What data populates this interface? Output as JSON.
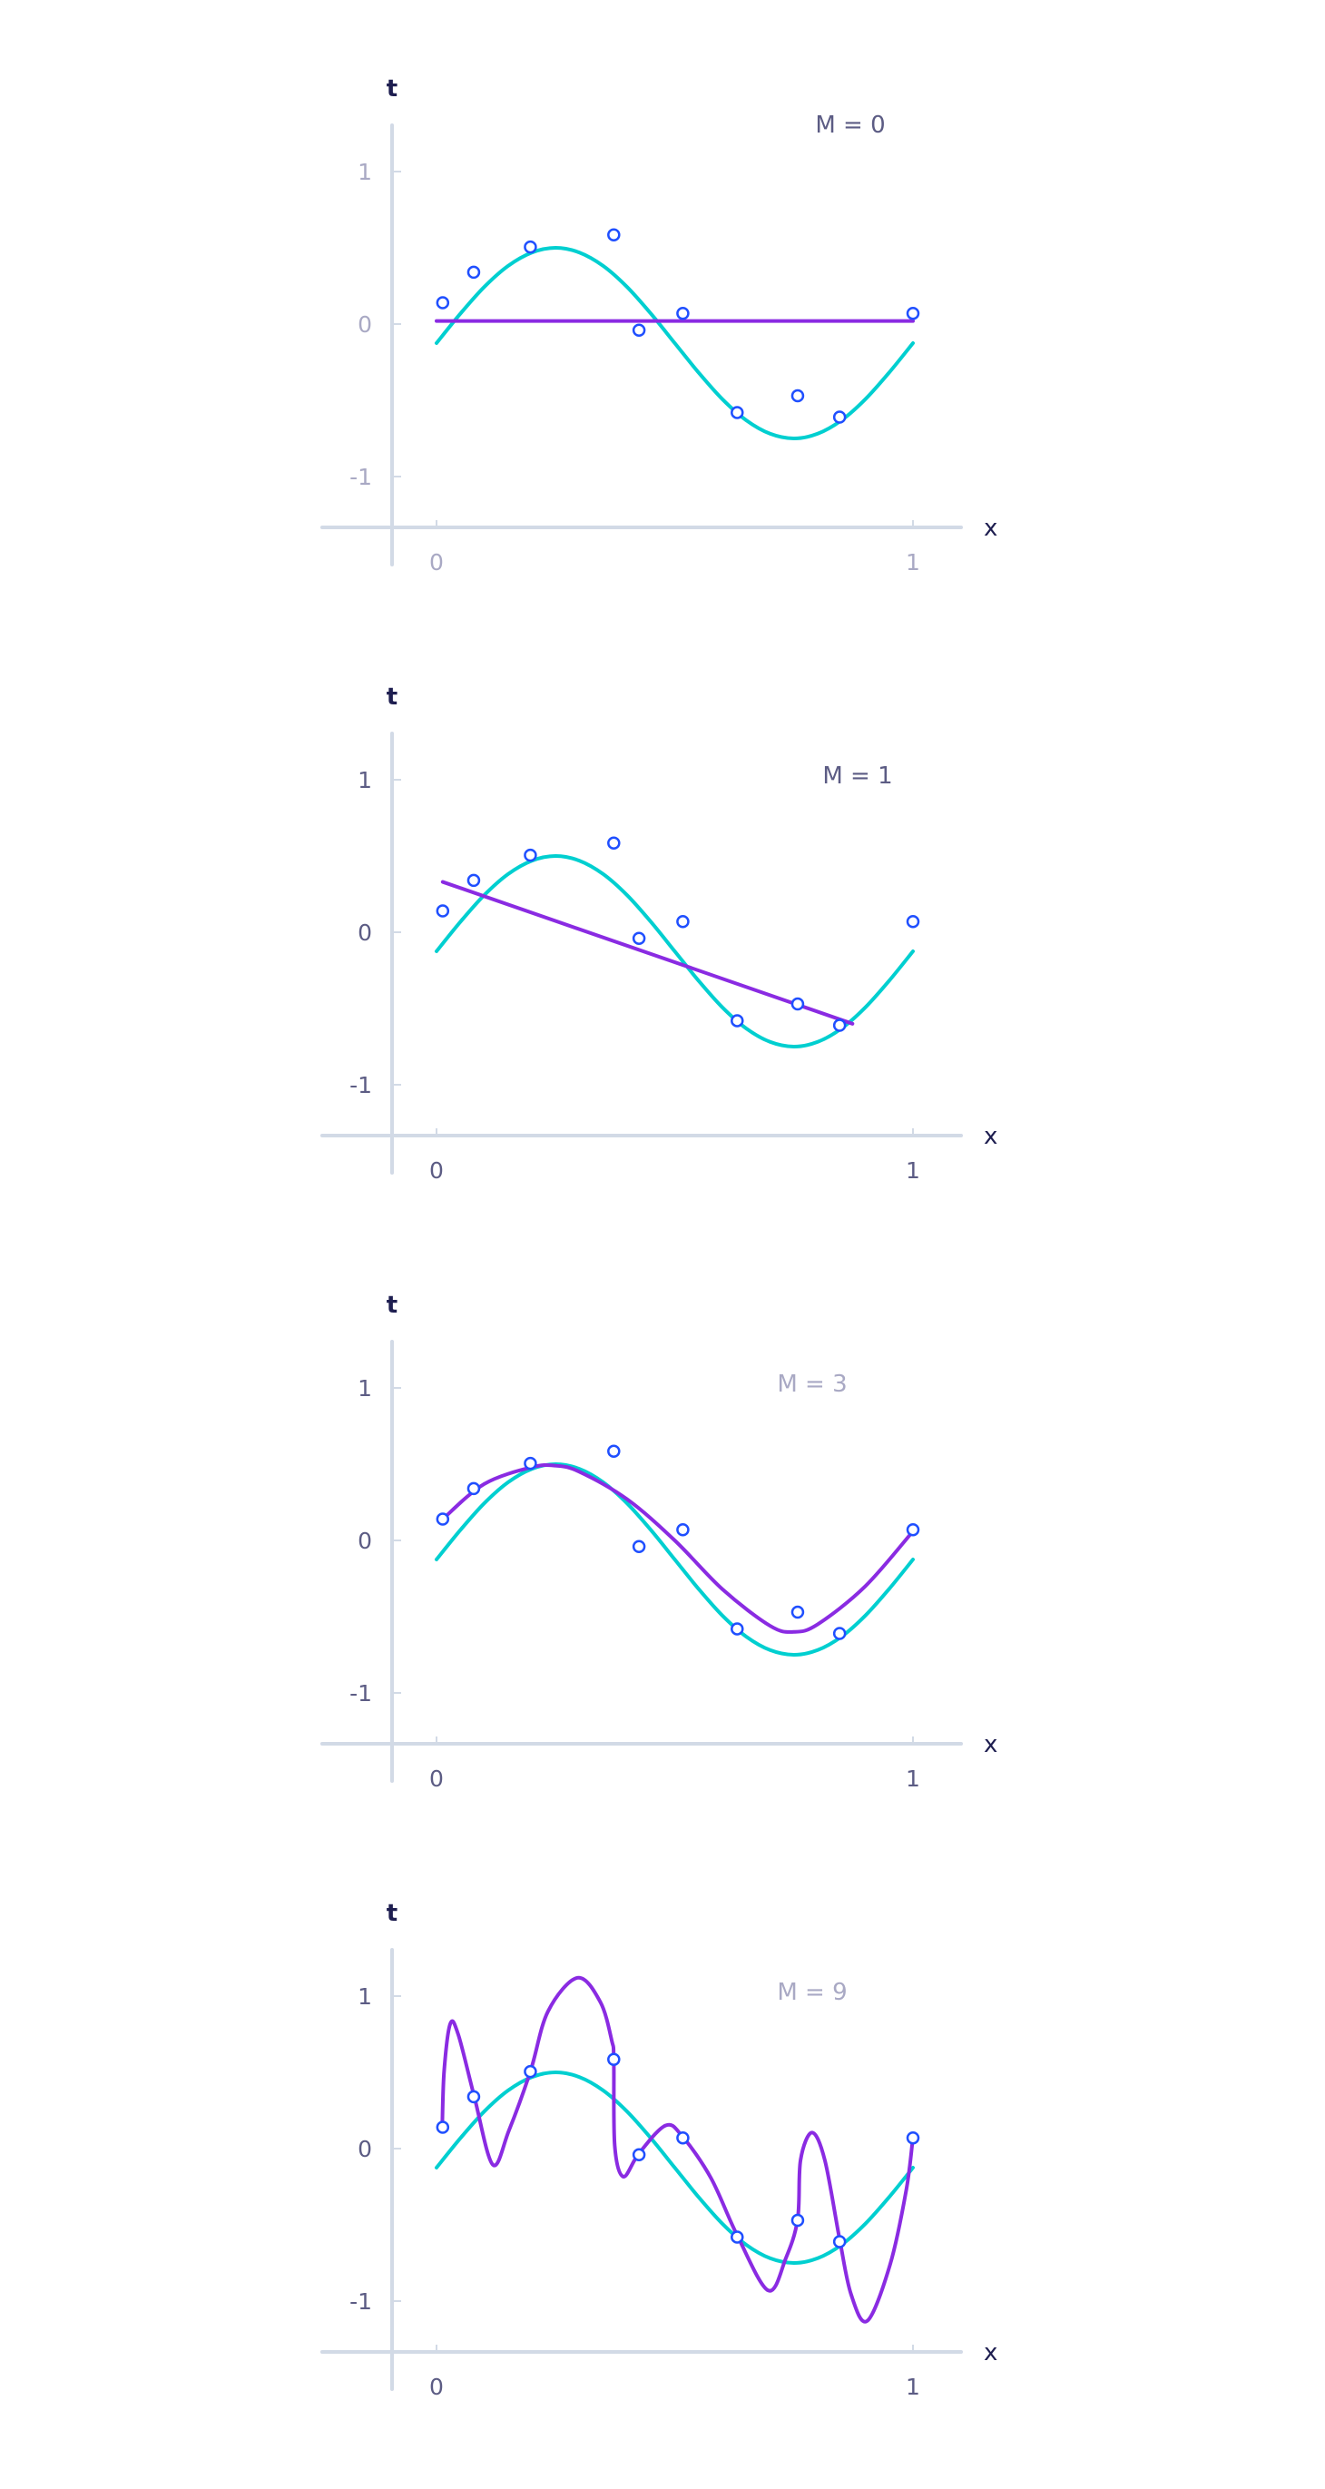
{
  "colors": {
    "target_curve": "#00cfd0",
    "fit_curve": "#8a2be2",
    "points": "#1f4fff",
    "axis": "#d2dae6",
    "axis_title": "#1e1e50",
    "tick_light": "#a9a9c4",
    "tick_dark": "#5c5c84"
  },
  "target_curve": {
    "x": [
      0,
      0.05,
      0.1,
      0.15,
      0.2,
      0.25,
      0.3,
      0.35,
      0.4,
      0.45,
      0.5,
      0.55,
      0.6,
      0.65,
      0.7,
      0.75,
      0.8,
      0.85,
      0.9,
      0.95,
      1
    ],
    "t": [
      -0.125,
      0.068,
      0.243,
      0.381,
      0.469,
      0.5,
      0.469,
      0.381,
      0.243,
      0.068,
      -0.125,
      -0.318,
      -0.493,
      -0.631,
      -0.719,
      -0.75,
      -0.719,
      -0.631,
      -0.493,
      -0.318,
      -0.125
    ]
  },
  "data_points": {
    "x": [
      0.013,
      0.078,
      0.197,
      0.372,
      0.425,
      0.517,
      0.631,
      0.758,
      0.846,
      1.0
    ],
    "t": [
      0.14,
      0.34,
      0.505,
      0.585,
      -0.04,
      0.07,
      -0.58,
      -0.47,
      -0.61,
      0.07
    ]
  },
  "chart_data": [
    {
      "type": "line",
      "title": "M = 0",
      "xlabel": "x",
      "ylabel": "t",
      "x_ticks": [
        "0",
        "1"
      ],
      "y_ticks": [
        "1",
        "0",
        "-1"
      ],
      "xlim": [
        -0.25,
        1.18
      ],
      "ylim": [
        -1.3,
        1.3
      ],
      "grid": false,
      "fit": {
        "x": [
          0,
          1
        ],
        "t": [
          0.02,
          0.02
        ]
      }
    },
    {
      "type": "line",
      "title": "M = 1",
      "xlabel": "x",
      "ylabel": "t",
      "x_ticks": [
        "0",
        "1"
      ],
      "y_ticks": [
        "1",
        "0",
        "-1"
      ],
      "xlim": [
        -0.25,
        1.18
      ],
      "ylim": [
        -1.3,
        1.3
      ],
      "grid": false,
      "fit": {
        "x": [
          0.013,
          0.873
        ],
        "t": [
          0.33,
          -0.6
        ]
      }
    },
    {
      "type": "line",
      "title": "M = 3",
      "xlabel": "x",
      "ylabel": "t",
      "x_ticks": [
        "0",
        "1"
      ],
      "y_ticks": [
        "1",
        "0",
        "-1"
      ],
      "xlim": [
        -0.25,
        1.18
      ],
      "ylim": [
        -1.3,
        1.3
      ],
      "grid": false,
      "fit": {
        "x": [
          0.013,
          0.1,
          0.2,
          0.25,
          0.3,
          0.4,
          0.5,
          0.6,
          0.7,
          0.75,
          0.8,
          0.9,
          1.0
        ],
        "t": [
          0.14,
          0.37,
          0.48,
          0.49,
          0.45,
          0.27,
          0.0,
          -0.32,
          -0.56,
          -0.6,
          -0.55,
          -0.3,
          0.06
        ]
      }
    },
    {
      "type": "line",
      "title": "M = 9",
      "xlabel": "x",
      "ylabel": "t",
      "x_ticks": [
        "0",
        "1"
      ],
      "y_ticks": [
        "1",
        "0",
        "-1"
      ],
      "xlim": [
        -0.25,
        1.18
      ],
      "ylim": [
        -1.3,
        1.3
      ],
      "grid": false,
      "fit": {
        "x": [
          0.012,
          0.016,
          0.029,
          0.046,
          0.079,
          0.118,
          0.152,
          0.197,
          0.234,
          0.296,
          0.344,
          0.368,
          0.372,
          0.374,
          0.392,
          0.425,
          0.481,
          0.517,
          0.576,
          0.631,
          0.696,
          0.733,
          0.758,
          0.764,
          0.788,
          0.815,
          0.846,
          0.87,
          0.904,
          0.952,
          0.986,
          1.0
        ],
        "t": [
          0.145,
          0.51,
          0.82,
          0.744,
          0.344,
          -0.105,
          0.119,
          0.506,
          0.9,
          1.12,
          0.96,
          0.705,
          0.588,
          0.02,
          -0.184,
          -0.031,
          0.152,
          0.076,
          -0.193,
          -0.568,
          -0.93,
          -0.72,
          -0.461,
          -0.076,
          0.105,
          -0.076,
          -0.594,
          -0.955,
          -1.13,
          -0.76,
          -0.27,
          0.076
        ]
      }
    }
  ]
}
